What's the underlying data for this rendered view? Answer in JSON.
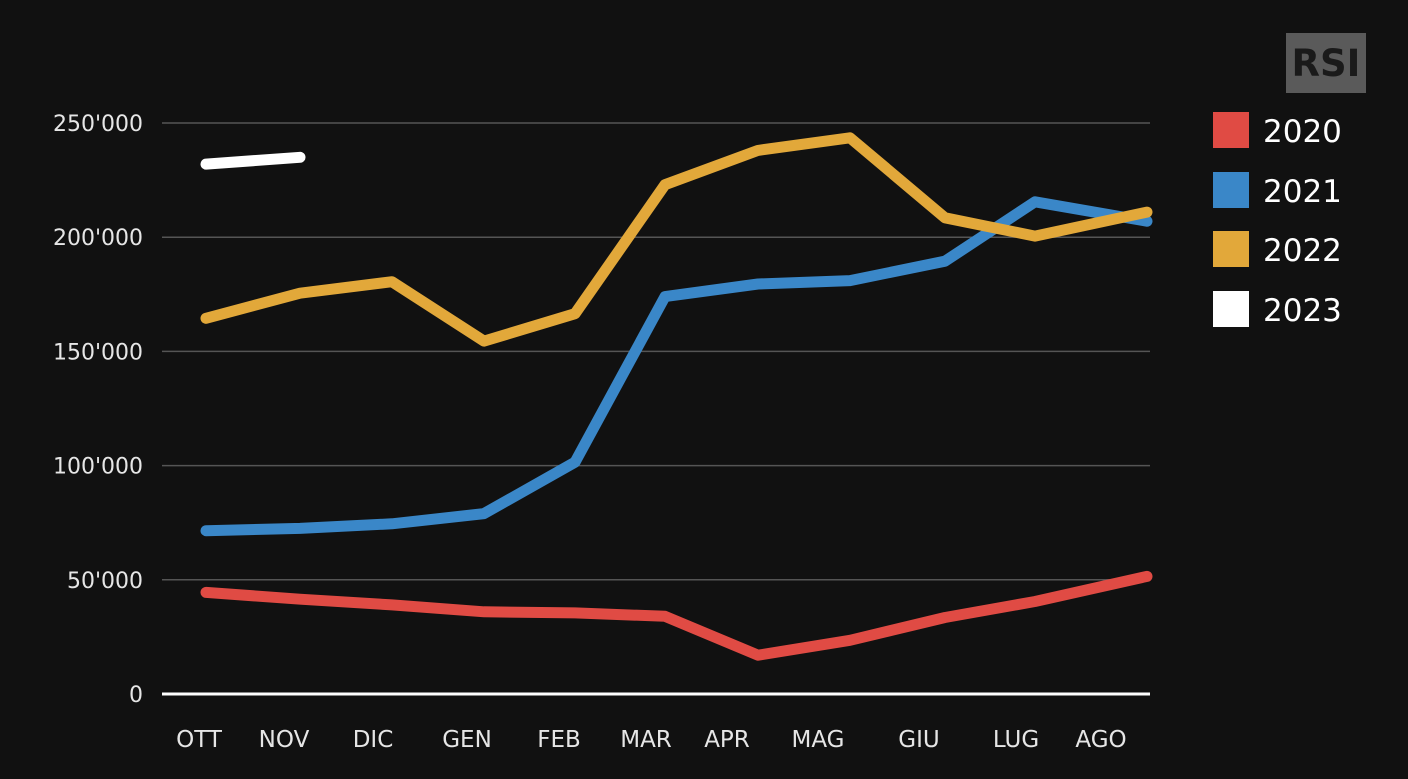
{
  "logo": {
    "text": "RSI"
  },
  "chart_data": {
    "type": "line",
    "categories": [
      "OTT",
      "NOV",
      "DIC",
      "GEN",
      "FEB",
      "MAR",
      "APR",
      "MAG",
      "GIU",
      "LUG",
      "AGO"
    ],
    "y_ticks": [
      "0",
      "50'000",
      "100'000",
      "150'000",
      "200'000",
      "250'000"
    ],
    "ylim": [
      0,
      250000
    ],
    "grid": true,
    "legend_position": "right",
    "series": [
      {
        "name": "2020",
        "color": "#e04b44",
        "values": [
          44500,
          41500,
          39000,
          36000,
          35500,
          34000,
          17000,
          23500,
          33500,
          40500,
          51500
        ]
      },
      {
        "name": "2021",
        "color": "#3a87c8",
        "values": [
          71500,
          72500,
          74500,
          79000,
          101500,
          174000,
          179500,
          181000,
          189500,
          215500,
          207000
        ]
      },
      {
        "name": "2022",
        "color": "#e2a83a",
        "values": [
          164500,
          175500,
          180500,
          154500,
          166500,
          223000,
          238000,
          243500,
          208500,
          200500,
          211000
        ]
      },
      {
        "name": "2023",
        "color": "#ffffff",
        "values": [
          232000,
          235000,
          null,
          null,
          null,
          null,
          null,
          null,
          null,
          null,
          null
        ]
      }
    ]
  }
}
